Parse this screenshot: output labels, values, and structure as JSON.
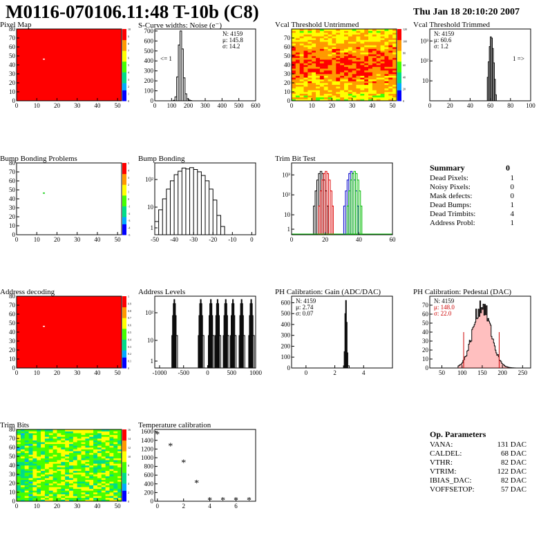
{
  "header": {
    "title": "M0116-070106.11:48 T-10b (C8)",
    "date": "Thu Jan 18 20:10:20 2007"
  },
  "colors": {
    "hot": "#ff0000",
    "hist": "#000000",
    "trim_red": "#dd0000",
    "trim_blue": "#0000cc",
    "trim_green": "#00bb00"
  },
  "chart_data": [
    {
      "id": "pixel-map",
      "type": "heatmap",
      "title": "Pixel Map",
      "x_ticks": [
        "0",
        "10",
        "20",
        "30",
        "40",
        "50"
      ],
      "y_ticks": [
        "0",
        "10",
        "20",
        "30",
        "40",
        "50",
        "60",
        "70",
        "80"
      ],
      "xlim": [
        0,
        52
      ],
      "ylim": [
        0,
        80
      ],
      "z_ticks": [
        "0",
        "1",
        "2",
        "3",
        "4",
        "5",
        "6",
        "7",
        "8",
        "9",
        "10"
      ],
      "fill": "uniform red",
      "outlier": {
        "x": 13,
        "y": 47
      }
    },
    {
      "id": "scurve-noise",
      "type": "histogram",
      "title": "S-Curve widths: Noise (e⁻)",
      "x_ticks": [
        "0",
        "100",
        "200",
        "300",
        "400",
        "500",
        "600"
      ],
      "xlim": [
        0,
        600
      ],
      "y_ticks": [
        "0",
        "100",
        "200",
        "300",
        "400",
        "500",
        "600",
        "700"
      ],
      "ylim": [
        0,
        720
      ],
      "stats": [
        "N: 4159",
        "μ: 145.8",
        "σ: 14.2"
      ],
      "underflow_label": "<= 1",
      "x": [
        100,
        110,
        120,
        130,
        140,
        150,
        160,
        170,
        180,
        190,
        200,
        210,
        220
      ],
      "y": [
        0,
        5,
        40,
        240,
        560,
        700,
        520,
        230,
        70,
        20,
        8,
        3,
        0
      ]
    },
    {
      "id": "vcal-untrimmed",
      "type": "heatmap",
      "title": "Vcal Threshold Untrimmed",
      "x_ticks": [
        "0",
        "10",
        "20",
        "30",
        "40",
        "50"
      ],
      "y_ticks": [
        "0",
        "10",
        "20",
        "30",
        "40",
        "50",
        "60",
        "70"
      ],
      "xlim": [
        0,
        52
      ],
      "ylim": [
        0,
        80
      ],
      "z_ticks": [
        "0",
        "20",
        "40",
        "60",
        "80",
        "100",
        "120"
      ]
    },
    {
      "id": "vcal-trimmed",
      "type": "histogram",
      "title": "Vcal Threshold Trimmed",
      "x_ticks": [
        "0",
        "20",
        "40",
        "60",
        "80",
        "100"
      ],
      "xlim": [
        0,
        100
      ],
      "y_ticks": [
        "10",
        "10²",
        "10³"
      ],
      "log": true,
      "stats": [
        "N: 4159",
        "μ: 60.6",
        "σ:  1.2"
      ],
      "overflow_label": "1 =>",
      "x": [
        56,
        57,
        58,
        59,
        60,
        61,
        62,
        63,
        64,
        65,
        66
      ],
      "y": [
        1,
        15,
        90,
        520,
        1600,
        1400,
        420,
        80,
        12,
        2,
        1
      ]
    },
    {
      "id": "bump-problems",
      "type": "heatmap",
      "title": "Bump Bonding Problems",
      "x_ticks": [
        "0",
        "10",
        "20",
        "30",
        "40",
        "50"
      ],
      "y_ticks": [
        "0",
        "10",
        "20",
        "30",
        "40",
        "50",
        "60",
        "70",
        "80"
      ],
      "xlim": [
        0,
        52
      ],
      "ylim": [
        0,
        80
      ],
      "z_ticks": [
        "-5",
        "-4",
        "-3",
        "-2",
        "-1",
        "0",
        "1",
        "2",
        "3",
        "4",
        "5"
      ],
      "outlier": {
        "x": 13,
        "y": 47
      }
    },
    {
      "id": "bump-bonding",
      "type": "histogram",
      "title": "Bump Bonding",
      "x_ticks": [
        "-50",
        "-40",
        "-30",
        "-20",
        "-10",
        "0"
      ],
      "xlim": [
        -50,
        2
      ],
      "y_ticks": [
        "1",
        "10",
        "10²"
      ],
      "log": true,
      "x": [
        -50,
        -48,
        -46,
        -44,
        -42,
        -40,
        -38,
        -36,
        -34,
        -32,
        -30,
        -28,
        -26,
        -24,
        -22,
        -20,
        -18,
        -16,
        -14,
        0
      ],
      "y": [
        3,
        8,
        20,
        45,
        90,
        150,
        200,
        260,
        240,
        270,
        230,
        190,
        140,
        90,
        45,
        18,
        5,
        2,
        1,
        1
      ]
    },
    {
      "id": "trim-bit-test",
      "type": "histogram",
      "title": "Trim Bit Test",
      "x_ticks": [
        "0",
        "20",
        "40",
        "60"
      ],
      "xlim": [
        0,
        60
      ],
      "y_ticks": [
        "1",
        "10",
        "10²",
        "10³"
      ],
      "log": true,
      "series": [
        {
          "color": "black",
          "peak": 17
        },
        {
          "color": "red",
          "peak": 20
        },
        {
          "color": "blue",
          "peak": 35
        },
        {
          "color": "green",
          "peak": 37
        }
      ]
    },
    {
      "id": "address-decoding",
      "type": "heatmap",
      "title": "Address decoding",
      "x_ticks": [
        "0",
        "10",
        "20",
        "30",
        "40",
        "50"
      ],
      "y_ticks": [
        "0",
        "10",
        "20",
        "30",
        "40",
        "50",
        "60",
        "70",
        "80"
      ],
      "xlim": [
        0,
        52
      ],
      "ylim": [
        0,
        80
      ],
      "z_ticks": [
        "0",
        "0.1",
        "0.2",
        "0.3",
        "0.4",
        "0.5",
        "0.6",
        "0.7",
        "0.8",
        "0.9",
        "1"
      ],
      "outlier": {
        "x": 13,
        "y": 47
      }
    },
    {
      "id": "address-levels",
      "type": "histogram",
      "title": "Address Levels",
      "x_ticks": [
        "-1000",
        "-500",
        "0",
        "500",
        "1000"
      ],
      "xlim": [
        -1100,
        1000
      ],
      "y_ticks": [
        "1",
        "10",
        "10²"
      ],
      "log": true,
      "peaks": [
        -700,
        -150,
        60,
        200,
        370,
        520,
        700,
        900
      ]
    },
    {
      "id": "ph-gain",
      "type": "histogram",
      "title": "PH Calibration: Gain (ADC/DAC)",
      "x_ticks": [
        "0",
        "2",
        "4"
      ],
      "xlim": [
        -1,
        6
      ],
      "y_ticks": [
        "0",
        "100",
        "200",
        "300",
        "400",
        "500",
        "600"
      ],
      "ylim": [
        0,
        660
      ],
      "stats": [
        "N: 4159",
        "μ: 2.74",
        "σ: 0.07"
      ],
      "x": [
        2.5,
        2.6,
        2.65,
        2.7,
        2.75,
        2.8,
        2.85,
        2.9,
        3.0
      ],
      "y": [
        0,
        20,
        150,
        500,
        620,
        420,
        140,
        20,
        0
      ]
    },
    {
      "id": "ph-pedestal",
      "type": "histogram",
      "title": "PH Calibration: Pedestal (DAC)",
      "x_ticks": [
        "50",
        "100",
        "150",
        "200",
        "250"
      ],
      "xlim": [
        20,
        270
      ],
      "y_ticks": [
        "0",
        "10",
        "20",
        "30",
        "40",
        "50",
        "60",
        "70"
      ],
      "ylim": [
        0,
        80
      ],
      "stats": [
        "N: 4159",
        "μ: 148.0",
        "σ: 22.0"
      ],
      "mean": 148.0,
      "sigma": 22.0
    },
    {
      "id": "trim-bits",
      "type": "heatmap",
      "title": "Trim Bits",
      "x_ticks": [
        "0",
        "10",
        "20",
        "30",
        "40",
        "50"
      ],
      "y_ticks": [
        "0",
        "10",
        "20",
        "30",
        "40",
        "50",
        "60",
        "70",
        "80"
      ],
      "xlim": [
        0,
        52
      ],
      "ylim": [
        0,
        80
      ],
      "z_ticks": [
        "0",
        "2",
        "4",
        "6",
        "8",
        "10",
        "12",
        "14",
        "16"
      ]
    },
    {
      "id": "temp-calibration",
      "type": "scatter",
      "title": "Temperature calibration",
      "x_ticks": [
        "0",
        "2",
        "4",
        "6"
      ],
      "xlim": [
        -0.2,
        7.5
      ],
      "y_ticks": [
        "0",
        "200",
        "400",
        "600",
        "800",
        "1000",
        "1200",
        "1400",
        "1600"
      ],
      "ylim": [
        0,
        1650
      ],
      "x": [
        0,
        1,
        2,
        3,
        4,
        5,
        6,
        7
      ],
      "y": [
        1550,
        1280,
        900,
        430,
        30,
        30,
        30,
        30
      ]
    }
  ],
  "summary": {
    "title": "Summary",
    "total": "0",
    "rows": [
      [
        "Dead Pixels:",
        "1"
      ],
      [
        "Noisy Pixels:",
        "0"
      ],
      [
        "Mask defects:",
        "0"
      ],
      [
        "Dead Bumps:",
        "1"
      ],
      [
        "Dead Trimbits:",
        "4"
      ],
      [
        "Address Probl:",
        "1"
      ]
    ]
  },
  "op_params": {
    "title": "Op. Parameters",
    "rows": [
      [
        "VANA:",
        "131 DAC"
      ],
      [
        "CALDEL:",
        "68 DAC"
      ],
      [
        "VTHR:",
        "82 DAC"
      ],
      [
        "VTRIM:",
        "122 DAC"
      ],
      [
        "IBIAS_DAC:",
        "82 DAC"
      ],
      [
        "VOFFSETOP:",
        "57 DAC"
      ]
    ]
  }
}
